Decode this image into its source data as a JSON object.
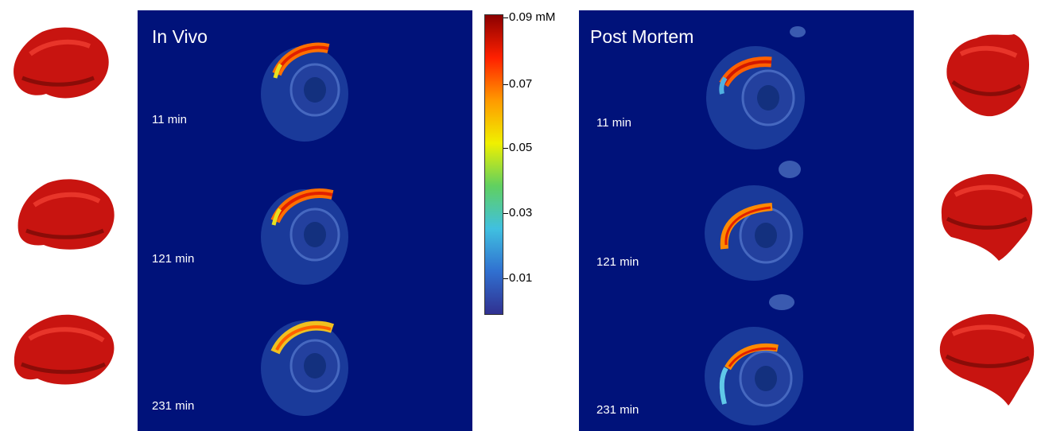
{
  "panels": {
    "in_vivo": {
      "title": "In Vivo",
      "times": [
        "11 min",
        "121 min",
        "231 min"
      ]
    },
    "post_mortem": {
      "title": "Post Mortem",
      "times": [
        "11 min",
        "121 min",
        "231 min"
      ]
    }
  },
  "colorbar": {
    "labels": [
      "0.09 mM",
      "0.07",
      "0.05",
      "0.03",
      "0.01"
    ],
    "colors": [
      "#8b0000",
      "#ff2000",
      "#ff9a00",
      "#f0f000",
      "#60d060",
      "#40c0e0",
      "#3070d0",
      "#303090"
    ]
  },
  "colors": {
    "background": "#00127a",
    "heart_model": "#c81410",
    "label_text": "#ffffff"
  }
}
